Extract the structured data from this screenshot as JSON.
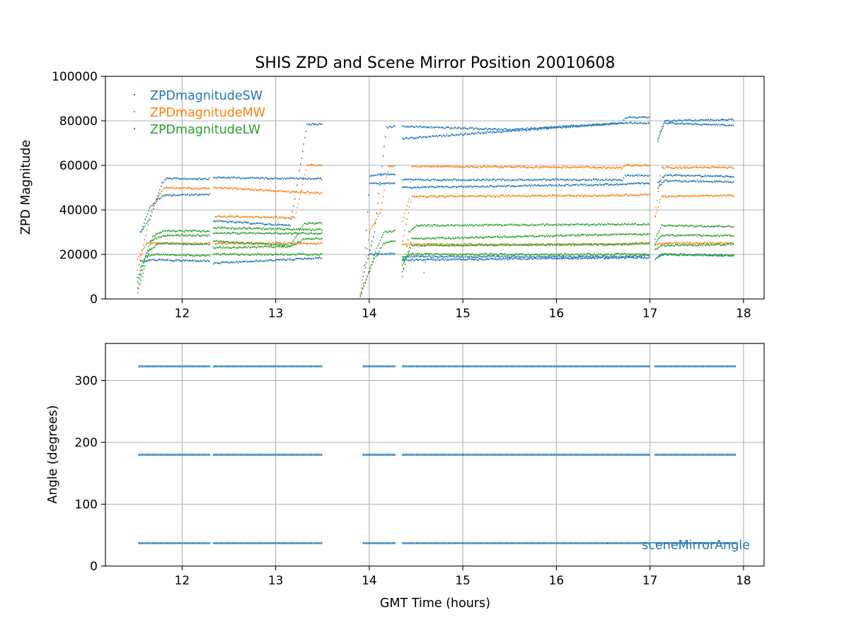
{
  "title": "SHIS ZPD and Scene Mirror Position 20010608",
  "colors": {
    "SW": "#1f77b4",
    "MW": "#ff7f0e",
    "LW": "#2ca02c",
    "angle": "#1f77b4"
  },
  "chart_data": [
    {
      "type": "scatter",
      "title": "SHIS ZPD and Scene Mirror Position 20010608",
      "xlabel": "",
      "ylabel": "ZPD Magnitude",
      "xlim": [
        11.18,
        18.22
      ],
      "ylim": [
        0,
        100000
      ],
      "xticks": [
        12,
        13,
        14,
        15,
        16,
        17,
        18
      ],
      "yticks": [
        0,
        20000,
        40000,
        60000,
        80000,
        100000
      ],
      "grid": true,
      "legend_placement": "top-left",
      "series": [
        {
          "name": "ZPDmagnitudeSW",
          "color": "#1f77b4",
          "tracks": [
            [
              [
                11.55,
                30000
              ],
              [
                11.65,
                36000
              ],
              [
                11.78,
                52000
              ],
              [
                11.82,
                54000
              ],
              [
                12.3,
                54000
              ]
            ],
            [
              [
                12.33,
                54500
              ],
              [
                13.5,
                54000
              ]
            ],
            [
              [
                11.55,
                30000
              ],
              [
                11.65,
                41000
              ],
              [
                11.72,
                44000
              ],
              [
                11.78,
                46000
              ],
              [
                11.83,
                46500
              ],
              [
                12.3,
                47000
              ]
            ],
            [
              [
                12.33,
                35000
              ],
              [
                13.15,
                33000
              ],
              [
                13.33,
                78500
              ],
              [
                13.5,
                78500
              ]
            ],
            [
              [
                11.55,
                17000
              ],
              [
                11.7,
                17500
              ],
              [
                12.3,
                17000
              ]
            ],
            [
              [
                12.33,
                16000
              ],
              [
                13.5,
                18500
              ]
            ],
            [
              [
                13.93,
                7000
              ],
              [
                14.0,
                55000
              ],
              [
                14.1,
                56000
              ],
              [
                14.28,
                56000
              ]
            ],
            [
              [
                13.93,
                10000
              ],
              [
                14.05,
                30000
              ],
              [
                14.18,
                77000
              ],
              [
                14.28,
                77500
              ]
            ],
            [
              [
                14.35,
                77500
              ],
              [
                15.5,
                76000
              ],
              [
                16.7,
                79000
              ],
              [
                16.73,
                81500
              ],
              [
                17.0,
                81500
              ]
            ],
            [
              [
                14.35,
                72000
              ],
              [
                16.7,
                79000
              ],
              [
                17.0,
                79000
              ]
            ],
            [
              [
                14.0,
                52000
              ],
              [
                14.28,
                52000
              ]
            ],
            [
              [
                14.35,
                53500
              ],
              [
                16.7,
                53500
              ],
              [
                16.73,
                55500
              ],
              [
                17.0,
                55500
              ]
            ],
            [
              [
                14.35,
                50000
              ],
              [
                16.7,
                51500
              ],
              [
                17.0,
                52000
              ]
            ],
            [
              [
                14.0,
                20000
              ],
              [
                14.28,
                20500
              ]
            ],
            [
              [
                14.35,
                19000
              ],
              [
                16.7,
                19000
              ],
              [
                17.0,
                19500
              ]
            ],
            [
              [
                14.35,
                17500
              ],
              [
                16.7,
                18500
              ],
              [
                17.0,
                18500
              ]
            ],
            [
              [
                17.08,
                72000
              ],
              [
                17.15,
                80000
              ],
              [
                17.9,
                80500
              ]
            ],
            [
              [
                17.08,
                71000
              ],
              [
                17.15,
                79000
              ],
              [
                17.9,
                78000
              ]
            ],
            [
              [
                17.08,
                52000
              ],
              [
                17.15,
                55500
              ],
              [
                17.9,
                55000
              ]
            ],
            [
              [
                17.08,
                50000
              ],
              [
                17.15,
                53000
              ],
              [
                17.9,
                52500
              ]
            ],
            [
              [
                17.08,
                19000
              ],
              [
                17.15,
                20000
              ],
              [
                17.9,
                19500
              ]
            ]
          ]
        },
        {
          "name": "ZPDmagnitudeMW",
          "color": "#ff7f0e",
          "tracks": [
            [
              [
                11.52,
                13000
              ],
              [
                11.68,
                42000
              ],
              [
                11.8,
                50000
              ],
              [
                12.3,
                49500
              ]
            ],
            [
              [
                12.33,
                50000
              ],
              [
                13.5,
                47500
              ]
            ],
            [
              [
                11.52,
                18000
              ],
              [
                11.62,
                25000
              ],
              [
                12.3,
                25000
              ]
            ],
            [
              [
                12.35,
                37000
              ],
              [
                13.2,
                36500
              ],
              [
                13.33,
                60000
              ],
              [
                13.5,
                60000
              ]
            ],
            [
              [
                12.35,
                25000
              ],
              [
                13.5,
                25000
              ]
            ],
            [
              [
                13.9,
                1000
              ],
              [
                14.0,
                30000
              ],
              [
                14.12,
                40000
              ],
              [
                14.2,
                60000
              ],
              [
                14.28,
                59500
              ]
            ],
            [
              [
                14.35,
                35000
              ],
              [
                14.42,
                45000
              ],
              [
                14.45,
                59500
              ],
              [
                16.7,
                59000
              ],
              [
                16.73,
                60000
              ],
              [
                17.0,
                60000
              ]
            ],
            [
              [
                14.35,
                26000
              ],
              [
                14.45,
                46000
              ],
              [
                16.7,
                46500
              ],
              [
                17.0,
                47000
              ]
            ],
            [
              [
                14.35,
                24500
              ],
              [
                16.7,
                24500
              ],
              [
                17.0,
                25000
              ]
            ],
            [
              [
                14.58,
                12000
              ],
              [
                14.62,
                25000
              ]
            ],
            [
              [
                17.05,
                37000
              ],
              [
                17.12,
                59000
              ],
              [
                17.9,
                59000
              ]
            ],
            [
              [
                17.05,
                37000
              ],
              [
                17.12,
                46000
              ],
              [
                17.9,
                46500
              ]
            ],
            [
              [
                17.05,
                24000
              ],
              [
                17.12,
                25000
              ],
              [
                17.9,
                25000
              ]
            ]
          ]
        },
        {
          "name": "ZPDmagnitudeLW",
          "color": "#2ca02c",
          "tracks": [
            [
              [
                11.52,
                3000
              ],
              [
                11.6,
                15000
              ],
              [
                11.68,
                28000
              ],
              [
                11.8,
                30500
              ],
              [
                12.3,
                30500
              ]
            ],
            [
              [
                11.52,
                5000
              ],
              [
                11.65,
                26000
              ],
              [
                11.8,
                28500
              ],
              [
                12.3,
                28500
              ]
            ],
            [
              [
                11.52,
                8000
              ],
              [
                11.62,
                21000
              ],
              [
                11.75,
                25000
              ],
              [
                12.3,
                24500
              ]
            ],
            [
              [
                11.52,
                10000
              ],
              [
                11.6,
                19000
              ],
              [
                11.7,
                20000
              ],
              [
                12.3,
                19500
              ]
            ],
            [
              [
                12.33,
                32000
              ],
              [
                13.5,
                31000
              ]
            ],
            [
              [
                12.33,
                29500
              ],
              [
                13.5,
                29500
              ]
            ],
            [
              [
                12.33,
                26000
              ],
              [
                13.15,
                24000
              ],
              [
                13.3,
                34000
              ],
              [
                13.5,
                34000
              ]
            ],
            [
              [
                12.33,
                23000
              ],
              [
                13.15,
                23500
              ],
              [
                13.3,
                27000
              ],
              [
                13.5,
                27000
              ]
            ],
            [
              [
                12.33,
                20000
              ],
              [
                13.5,
                20000
              ]
            ],
            [
              [
                13.9,
                1000
              ],
              [
                14.05,
                20000
              ],
              [
                14.15,
                30000
              ],
              [
                14.28,
                30500
              ]
            ],
            [
              [
                13.9,
                2000
              ],
              [
                14.05,
                18000
              ],
              [
                14.15,
                25000
              ],
              [
                14.28,
                26000
              ]
            ],
            [
              [
                14.35,
                10000
              ],
              [
                14.42,
                30000
              ],
              [
                14.5,
                33000
              ],
              [
                16.7,
                33500
              ],
              [
                17.0,
                33500
              ]
            ],
            [
              [
                14.35,
                12000
              ],
              [
                14.45,
                27000
              ],
              [
                16.7,
                29000
              ],
              [
                17.0,
                29000
              ]
            ],
            [
              [
                14.35,
                15000
              ],
              [
                14.45,
                24000
              ],
              [
                16.7,
                24500
              ],
              [
                17.0,
                25000
              ]
            ],
            [
              [
                14.35,
                17000
              ],
              [
                14.42,
                20000
              ],
              [
                16.7,
                20000
              ],
              [
                17.0,
                20000
              ]
            ],
            [
              [
                17.05,
                27000
              ],
              [
                17.12,
                33000
              ],
              [
                17.9,
                32500
              ]
            ],
            [
              [
                17.05,
                25000
              ],
              [
                17.12,
                28500
              ],
              [
                17.9,
                28500
              ]
            ],
            [
              [
                17.05,
                22000
              ],
              [
                17.12,
                24000
              ],
              [
                17.9,
                24500
              ]
            ],
            [
              [
                17.05,
                18000
              ],
              [
                17.12,
                20000
              ],
              [
                17.9,
                19500
              ]
            ]
          ]
        }
      ]
    },
    {
      "type": "scatter",
      "title": "",
      "xlabel": "GMT Time (hours)",
      "ylabel": "Angle (degrees)",
      "xlim": [
        11.18,
        18.22
      ],
      "ylim": [
        0,
        360
      ],
      "xticks": [
        12,
        13,
        14,
        15,
        16,
        17,
        18
      ],
      "yticks": [
        0,
        100,
        200,
        300
      ],
      "grid": true,
      "legend_placement": "lower-right",
      "segments": [
        [
          11.53,
          12.3
        ],
        [
          12.33,
          13.5
        ],
        [
          13.93,
          14.28
        ],
        [
          14.35,
          17.0
        ],
        [
          17.05,
          17.92
        ]
      ],
      "series": [
        {
          "name": "sceneMirrorAngle",
          "color": "#1f77b4",
          "levels": [
            323,
            180,
            37
          ]
        }
      ]
    }
  ]
}
